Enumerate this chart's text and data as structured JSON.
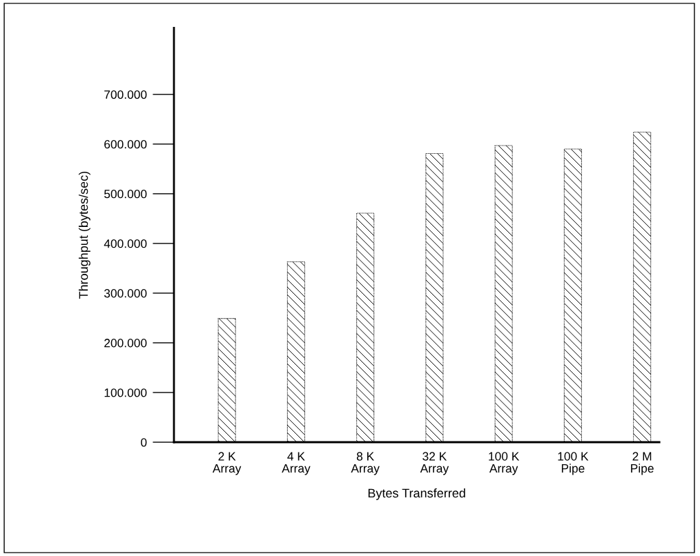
{
  "chart_data": {
    "type": "bar",
    "xlabel": "Bytes Transferred",
    "ylabel": "Throughput (bytes/sec)",
    "categories": [
      "2 K\nArray",
      "4 K\nArray",
      "8 K\nArray",
      "32 K\nArray",
      "100 K\nArray",
      "100 K\nPipe",
      "2 M\nPipe"
    ],
    "values": [
      249000,
      363000,
      461000,
      581000,
      597000,
      590000,
      624000
    ],
    "color": "#000000",
    "ylim": [
      0,
      834000
    ],
    "yticks": [
      {
        "value": 0,
        "label": "0"
      },
      {
        "value": 100000,
        "label": "100.000"
      },
      {
        "value": 200000,
        "label": "200.000"
      },
      {
        "value": 300000,
        "label": "300.000"
      },
      {
        "value": 400000,
        "label": "400.000"
      },
      {
        "value": 500000,
        "label": "500.000"
      },
      {
        "value": 600000,
        "label": "600.000"
      },
      {
        "value": 700000,
        "label": "700.000"
      }
    ],
    "grid": false,
    "legend": false
  }
}
